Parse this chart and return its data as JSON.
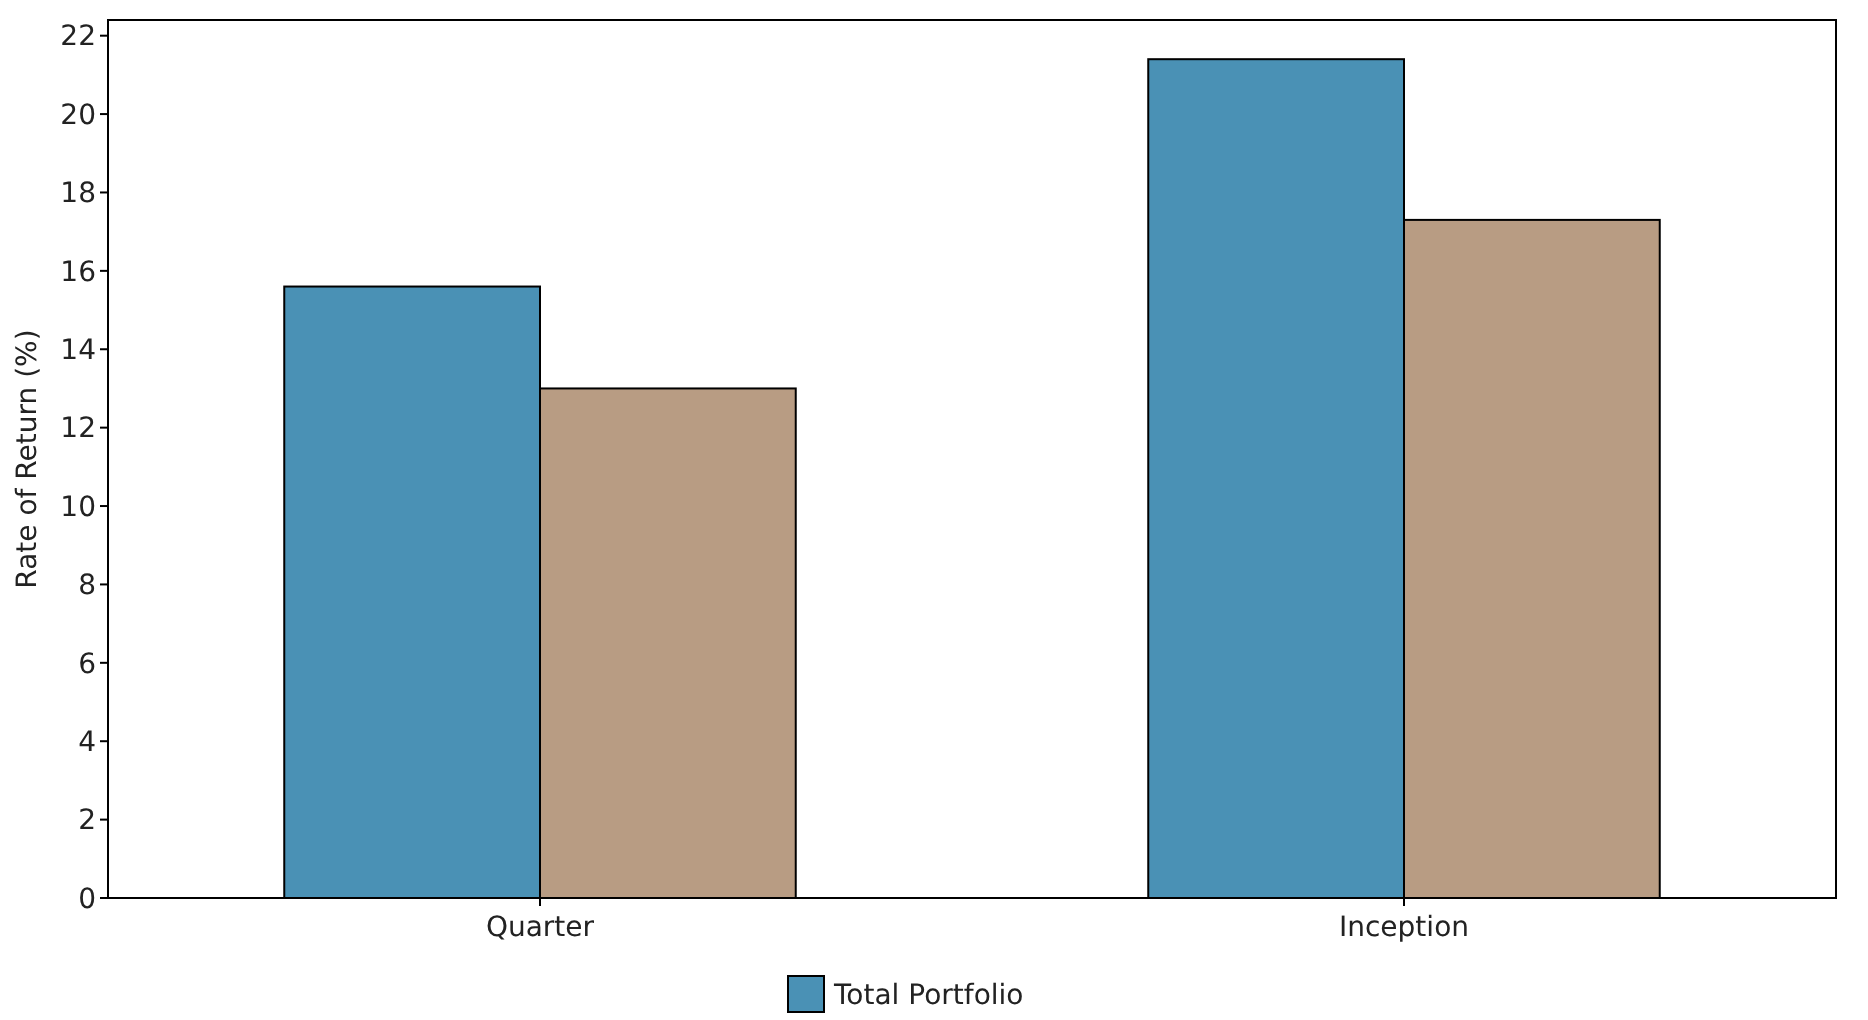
{
  "chart_data": {
    "type": "bar",
    "ylabel": "Rate of Return (%)",
    "categories": [
      "Quarter",
      "Inception"
    ],
    "series": [
      {
        "name": "Total Portfolio",
        "color": "#4a91b5",
        "values": [
          15.6,
          21.4
        ]
      },
      {
        "color": "#b89c83",
        "values": [
          13.0,
          17.3
        ]
      }
    ],
    "ylim": [
      0,
      22.4
    ],
    "yticks": [
      0,
      2,
      4,
      6,
      8,
      10,
      12,
      14,
      16,
      18,
      20,
      22
    ],
    "grid": false,
    "legend": "bottom"
  }
}
